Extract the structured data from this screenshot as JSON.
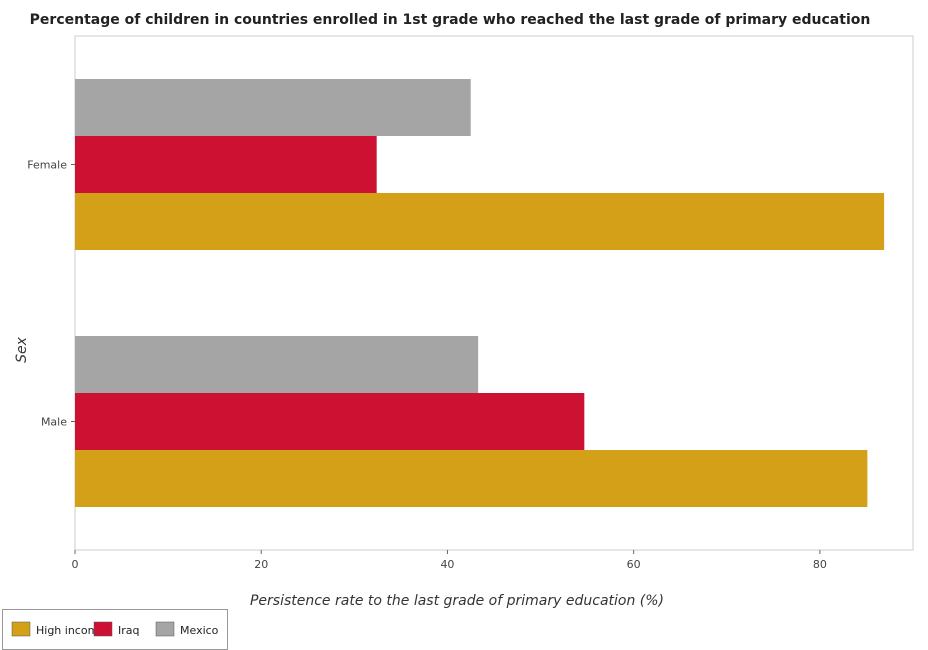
{
  "chart_data": {
    "type": "bar",
    "orientation": "horizontal",
    "title": "Percentage of children in countries enrolled in 1st grade who reached the last grade of primary education",
    "xlabel": "Persistence rate to the last grade of primary education (%)",
    "ylabel": "Sex",
    "categories": [
      "Female",
      "Male"
    ],
    "series": [
      {
        "name": "High income",
        "color": "#D4A017",
        "values": [
          86.9,
          85.1
        ]
      },
      {
        "name": "Iraq",
        "color": "#CC1133",
        "values": [
          32.4,
          54.7
        ]
      },
      {
        "name": "Mexico",
        "color": "#A5A5A5",
        "values": [
          42.5,
          43.3
        ]
      }
    ],
    "xlim": [
      0,
      90
    ],
    "xticks": [
      0,
      20,
      40,
      60,
      80
    ],
    "xtick_labels": [
      "0",
      "20",
      "40",
      "60",
      "80"
    ],
    "grid": false,
    "legend_position": "bottom-left"
  }
}
